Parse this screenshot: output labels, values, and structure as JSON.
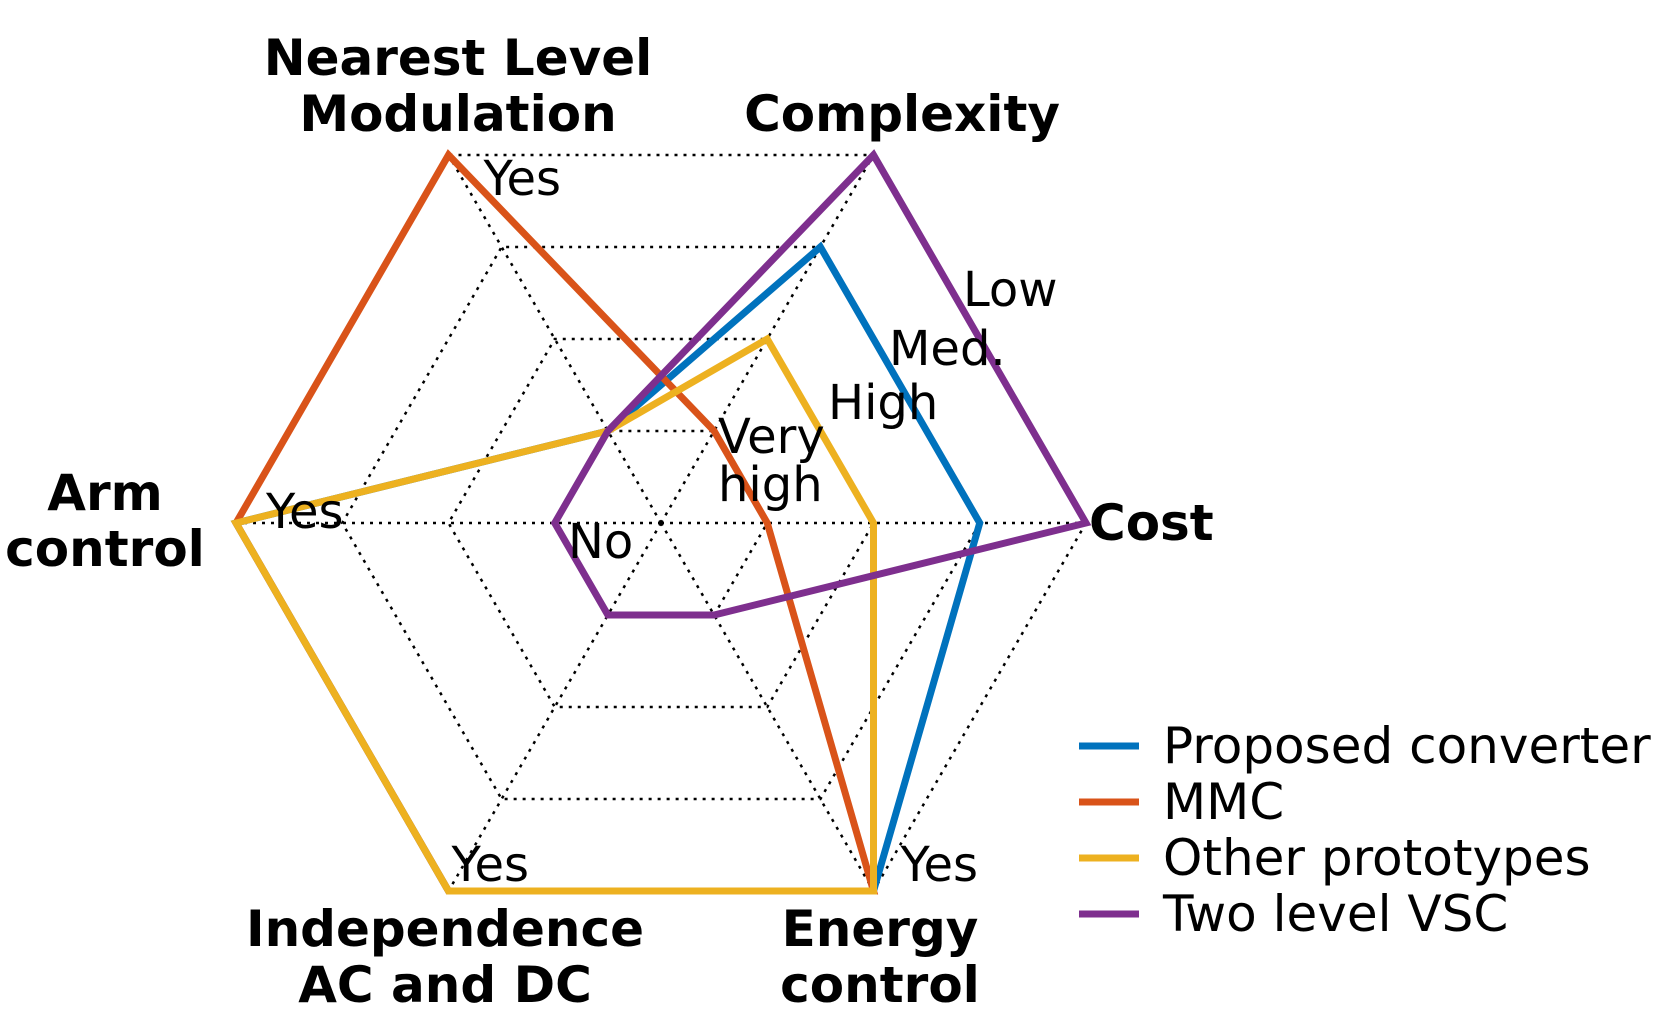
{
  "chart_data": {
    "type": "radar",
    "axes": [
      {
        "key": "cost",
        "title_lines": [
          "Cost"
        ]
      },
      {
        "key": "complexity",
        "title_lines": [
          "Complexity"
        ]
      },
      {
        "key": "nlm",
        "title_lines": [
          "Nearest Level",
          "Modulation"
        ]
      },
      {
        "key": "arm",
        "title_lines": [
          "Arm",
          "control"
        ]
      },
      {
        "key": "indep",
        "title_lines": [
          "Independence",
          "AC and DC"
        ]
      },
      {
        "key": "energy",
        "title_lines": [
          "Energy",
          "control"
        ]
      }
    ],
    "levels": 4,
    "value_range": [
      0,
      4
    ],
    "level_labels": [
      {
        "axis": "center",
        "level": 0,
        "lines": [
          "No"
        ]
      },
      {
        "axis": "cost",
        "level": 1,
        "lines": [
          "Very",
          "high"
        ]
      },
      {
        "axis": "cost",
        "level": 2,
        "lines": [
          "High"
        ]
      },
      {
        "axis": "cost",
        "level": 3,
        "lines": [
          "Med."
        ]
      },
      {
        "axis": "cost",
        "level": 4,
        "lines": [
          "Low"
        ]
      },
      {
        "axis": "nlm",
        "level": 4,
        "lines": [
          "Yes"
        ]
      },
      {
        "axis": "arm",
        "level": 4,
        "lines": [
          "Yes"
        ]
      },
      {
        "axis": "indep",
        "level": 4,
        "lines": [
          "Yes"
        ]
      },
      {
        "axis": "energy",
        "level": 4,
        "lines": [
          "Yes"
        ]
      }
    ],
    "series": [
      {
        "name": "Proposed converter",
        "color": "#0072BD",
        "values": [
          3,
          3,
          1,
          4,
          4,
          4
        ]
      },
      {
        "name": "MMC",
        "color": "#D95319",
        "values": [
          1,
          1,
          4,
          4,
          4,
          4
        ]
      },
      {
        "name": "Other prototypes",
        "color": "#EDB120",
        "values": [
          2,
          2,
          1,
          4,
          4,
          4
        ]
      },
      {
        "name": "Two level VSC",
        "color": "#7E2F8E",
        "values": [
          4,
          4,
          1,
          1,
          1,
          1
        ]
      }
    ],
    "legend_position": "bottom-right",
    "grid": true
  }
}
